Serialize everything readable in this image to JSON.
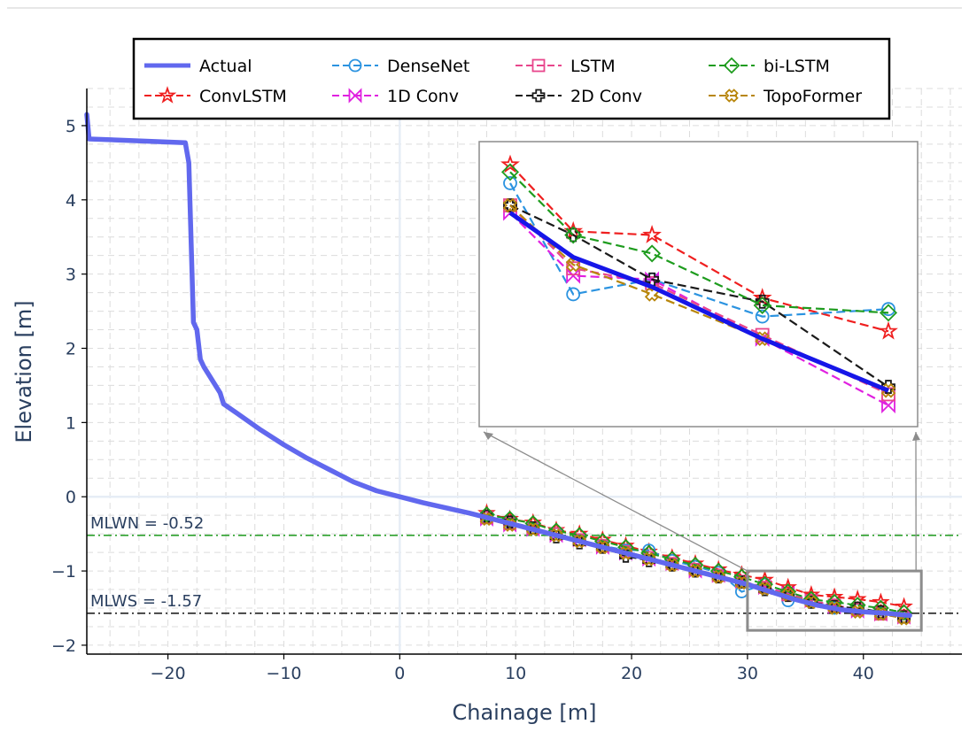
{
  "chart_data": {
    "type": "line",
    "title": "",
    "xlabel": "Chainage [m]",
    "ylabel": "Elevation [m]",
    "xlim": [
      -27,
      48.5
    ],
    "ylim": [
      -2.12,
      5.5
    ],
    "x_ticks": [
      -20,
      -10,
      0,
      10,
      20,
      30,
      40
    ],
    "x_tick_labels": [
      "−20",
      "−10",
      "0",
      "10",
      "20",
      "30",
      "40"
    ],
    "y_ticks": [
      -2,
      -1,
      0,
      1,
      2,
      3,
      4,
      5
    ],
    "y_tick_labels": [
      "−2",
      "−1",
      "0",
      "1",
      "2",
      "3",
      "4",
      "5"
    ],
    "grid": true,
    "legend_position": "top",
    "reference_lines": [
      {
        "label": "MLWN = -0.52",
        "y": -0.52,
        "color": "#2ca02c",
        "style": "dashdot"
      },
      {
        "label": "MLWS = -1.57",
        "y": -1.57,
        "color": "#111111",
        "style": "dashdot"
      }
    ],
    "actual": {
      "name": "Actual",
      "color": "#6168ee",
      "x": [
        -27,
        -26.8,
        -18.5,
        -18.2,
        -17.8,
        -17.5,
        -17.2,
        -16.9,
        -15.5,
        -15.3,
        -15.2,
        -14,
        -12,
        -10,
        -8,
        -6,
        -4,
        -2,
        0,
        2,
        4,
        6,
        7.5,
        10,
        12,
        14,
        16,
        18,
        20,
        22,
        24,
        26,
        28,
        30,
        32,
        34,
        36,
        38,
        40,
        42,
        44
      ],
      "y": [
        5.15,
        4.82,
        4.77,
        4.5,
        2.35,
        2.25,
        1.85,
        1.75,
        1.4,
        1.3,
        1.25,
        1.12,
        0.9,
        0.7,
        0.52,
        0.36,
        0.2,
        0.08,
        0.0,
        -0.08,
        -0.15,
        -0.22,
        -0.28,
        -0.38,
        -0.46,
        -0.54,
        -0.62,
        -0.7,
        -0.78,
        -0.86,
        -0.94,
        -1.02,
        -1.1,
        -1.18,
        -1.28,
        -1.38,
        -1.46,
        -1.52,
        -1.55,
        -1.57,
        -1.6
      ]
    },
    "prediction_x": [
      7.5,
      9.5,
      11.5,
      13.5,
      15.5,
      17.5,
      19.5,
      21.5,
      23.5,
      25.5,
      27.5,
      29.5,
      31.5,
      33.5,
      35.5,
      37.5,
      39.5,
      41.5,
      43.5
    ],
    "series": [
      {
        "name": "ConvLSTM",
        "color": "#ef1f1f",
        "marker": "star",
        "values": [
          -0.22,
          -0.3,
          -0.35,
          -0.45,
          -0.5,
          -0.58,
          -0.66,
          -0.74,
          -0.82,
          -0.9,
          -0.98,
          -1.05,
          -1.12,
          -1.22,
          -1.32,
          -1.35,
          -1.38,
          -1.42,
          -1.48
        ]
      },
      {
        "name": "DenseNet",
        "color": "#2b93e0",
        "marker": "circle",
        "values": [
          -0.28,
          -0.34,
          -0.42,
          -0.5,
          -0.58,
          -0.66,
          -0.72,
          -0.72,
          -0.86,
          -0.94,
          -1.02,
          -1.28,
          -1.18,
          -1.4,
          -1.42,
          -1.5,
          -1.52,
          -1.56,
          -1.62
        ]
      },
      {
        "name": "1D Conv",
        "color": "#e020e0",
        "marker": "bowtie",
        "values": [
          -0.3,
          -0.38,
          -0.44,
          -0.52,
          -0.58,
          -0.68,
          -0.76,
          -0.84,
          -0.9,
          -1.0,
          -1.06,
          -1.14,
          -1.22,
          -1.3,
          -1.4,
          -1.48,
          -1.54,
          -1.58,
          -1.62
        ]
      },
      {
        "name": "LSTM",
        "color": "#e8468c",
        "marker": "square",
        "values": [
          -0.28,
          -0.36,
          -0.42,
          -0.5,
          -0.58,
          -0.66,
          -0.74,
          -0.82,
          -0.9,
          -0.98,
          -1.06,
          -1.14,
          -1.22,
          -1.32,
          -1.4,
          -1.46,
          -1.52,
          -1.58,
          -1.62
        ]
      },
      {
        "name": "2D Conv",
        "color": "#1a1a1a",
        "marker": "cross",
        "values": [
          -0.26,
          -0.34,
          -0.42,
          -0.54,
          -0.62,
          -0.68,
          -0.8,
          -0.86,
          -0.92,
          -1.0,
          -1.08,
          -1.15,
          -1.25,
          -1.33,
          -1.42,
          -1.48,
          -1.5,
          -1.55,
          -1.62
        ]
      },
      {
        "name": "bi-LSTM",
        "color": "#1e9c1e",
        "marker": "diamond",
        "values": [
          -0.24,
          -0.3,
          -0.36,
          -0.46,
          -0.52,
          -0.6,
          -0.68,
          -0.76,
          -0.84,
          -0.92,
          -1.0,
          -1.08,
          -1.18,
          -1.28,
          -1.38,
          -1.42,
          -1.46,
          -1.5,
          -1.56
        ]
      },
      {
        "name": "TopoFormer",
        "color": "#b8860b",
        "marker": "x",
        "values": [
          -0.3,
          -0.38,
          -0.44,
          -0.52,
          -0.6,
          -0.68,
          -0.76,
          -0.84,
          -0.92,
          -1.0,
          -1.08,
          -1.16,
          -1.24,
          -1.32,
          -1.42,
          -1.5,
          -1.55,
          -1.58,
          -1.64
        ]
      }
    ],
    "inset": {
      "source_xlim": [
        30,
        45
      ],
      "source_ylim": [
        -1.8,
        -1.0
      ],
      "x": [
        30,
        32,
        34.5,
        38,
        42
      ],
      "actual": [
        -1.18,
        -1.3,
        -1.38,
        -1.52,
        -1.66
      ],
      "series": [
        {
          "name": "ConvLSTM",
          "values": [
            -1.05,
            -1.23,
            -1.24,
            -1.41,
            -1.5
          ]
        },
        {
          "name": "DenseNet",
          "values": [
            -1.1,
            -1.4,
            -1.36,
            -1.46,
            -1.44
          ]
        },
        {
          "name": "1D Conv",
          "values": [
            -1.18,
            -1.35,
            -1.36,
            -1.52,
            -1.7
          ]
        },
        {
          "name": "LSTM",
          "values": [
            -1.16,
            -1.33,
            -1.37,
            -1.51,
            -1.67
          ]
        },
        {
          "name": "2D Conv",
          "values": [
            -1.16,
            -1.24,
            -1.36,
            -1.42,
            -1.65
          ]
        },
        {
          "name": "bi-LSTM",
          "values": [
            -1.07,
            -1.24,
            -1.29,
            -1.43,
            -1.45
          ]
        },
        {
          "name": "TopoFormer",
          "values": [
            -1.16,
            -1.32,
            -1.4,
            -1.52,
            -1.66
          ]
        }
      ]
    },
    "legend": [
      {
        "name": "Actual",
        "color": "#6168ee",
        "marker": "none"
      },
      {
        "name": "DenseNet",
        "color": "#2b93e0",
        "marker": "circle"
      },
      {
        "name": "LSTM",
        "color": "#e8468c",
        "marker": "square"
      },
      {
        "name": "bi-LSTM",
        "color": "#1e9c1e",
        "marker": "diamond"
      },
      {
        "name": "ConvLSTM",
        "color": "#ef1f1f",
        "marker": "star"
      },
      {
        "name": "1D Conv",
        "color": "#e020e0",
        "marker": "bowtie"
      },
      {
        "name": "2D Conv",
        "color": "#1a1a1a",
        "marker": "cross"
      },
      {
        "name": "TopoFormer",
        "color": "#b8860b",
        "marker": "x"
      }
    ]
  }
}
